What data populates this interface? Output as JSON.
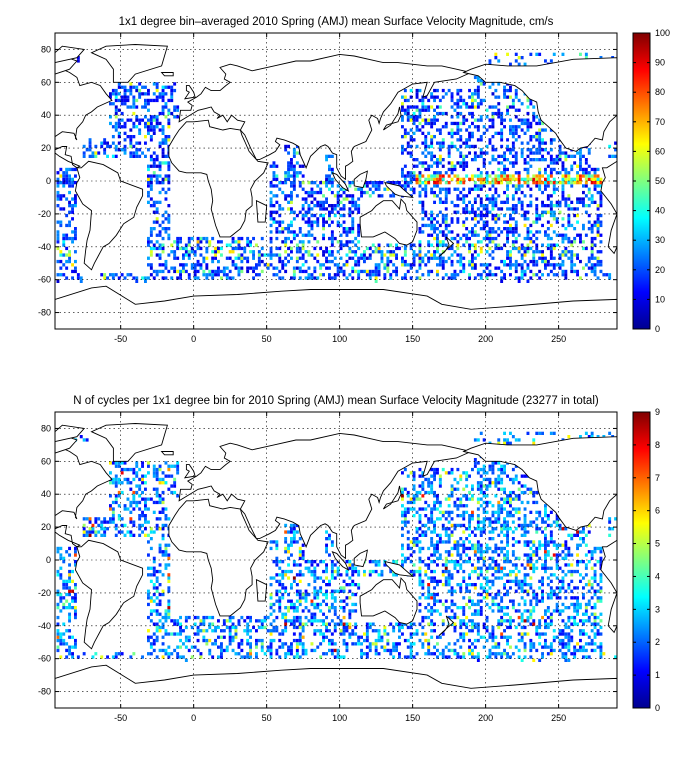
{
  "chart_data": [
    {
      "type": "heatmap",
      "title": "1x1 degree bin–averaged 2010 Spring (AMJ) mean Surface Velocity Magnitude, cm/s",
      "xlim": [
        -95,
        290
      ],
      "ylim": [
        -90,
        90
      ],
      "xticks": [
        "-50",
        "0",
        "50",
        "100",
        "150",
        "200",
        "250"
      ],
      "yticks": [
        "80",
        "60",
        "40",
        "20",
        "0",
        "-20",
        "-40",
        "-60",
        "-80"
      ],
      "colorbar": {
        "min": 0,
        "max": 100,
        "ticks": [
          "0",
          "10",
          "20",
          "30",
          "40",
          "50",
          "60",
          "70",
          "80",
          "90",
          "100"
        ]
      },
      "grid": true,
      "colormap": "jet"
    },
    {
      "type": "heatmap",
      "title": "N of cycles per 1x1 degree bin for 2010 Spring (AMJ) mean Surface Velocity Magnitude (23277 in total)",
      "xlim": [
        -95,
        290
      ],
      "ylim": [
        -90,
        90
      ],
      "xticks": [
        "-50",
        "0",
        "50",
        "100",
        "150",
        "200",
        "250"
      ],
      "yticks": [
        "80",
        "60",
        "40",
        "20",
        "0",
        "-20",
        "-40",
        "-60",
        "-80"
      ],
      "colorbar": {
        "min": 0,
        "max": 9,
        "ticks": [
          "0",
          "1",
          "2",
          "3",
          "4",
          "5",
          "6",
          "7",
          "8",
          "9"
        ]
      },
      "grid": true,
      "colormap": "jet"
    }
  ]
}
